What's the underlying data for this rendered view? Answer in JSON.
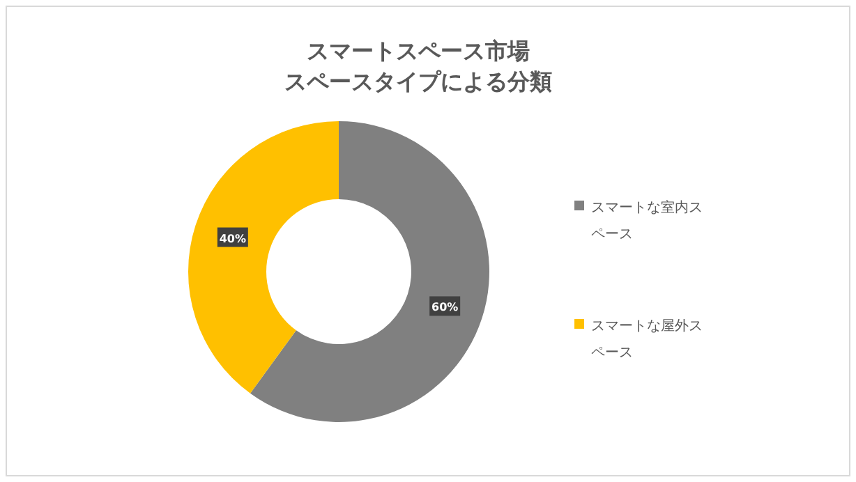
{
  "chart_data": {
    "type": "donut",
    "title": "スマートスペース市場",
    "subtitle": "スペースタイプによる分類",
    "categories": [
      "スマートな室内スペース",
      "スマートな屋外スペース"
    ],
    "values": [
      60,
      40
    ],
    "colors": [
      "#808080",
      "#ffc000"
    ],
    "value_labels": [
      "60%",
      "40%"
    ],
    "legend": "right"
  }
}
